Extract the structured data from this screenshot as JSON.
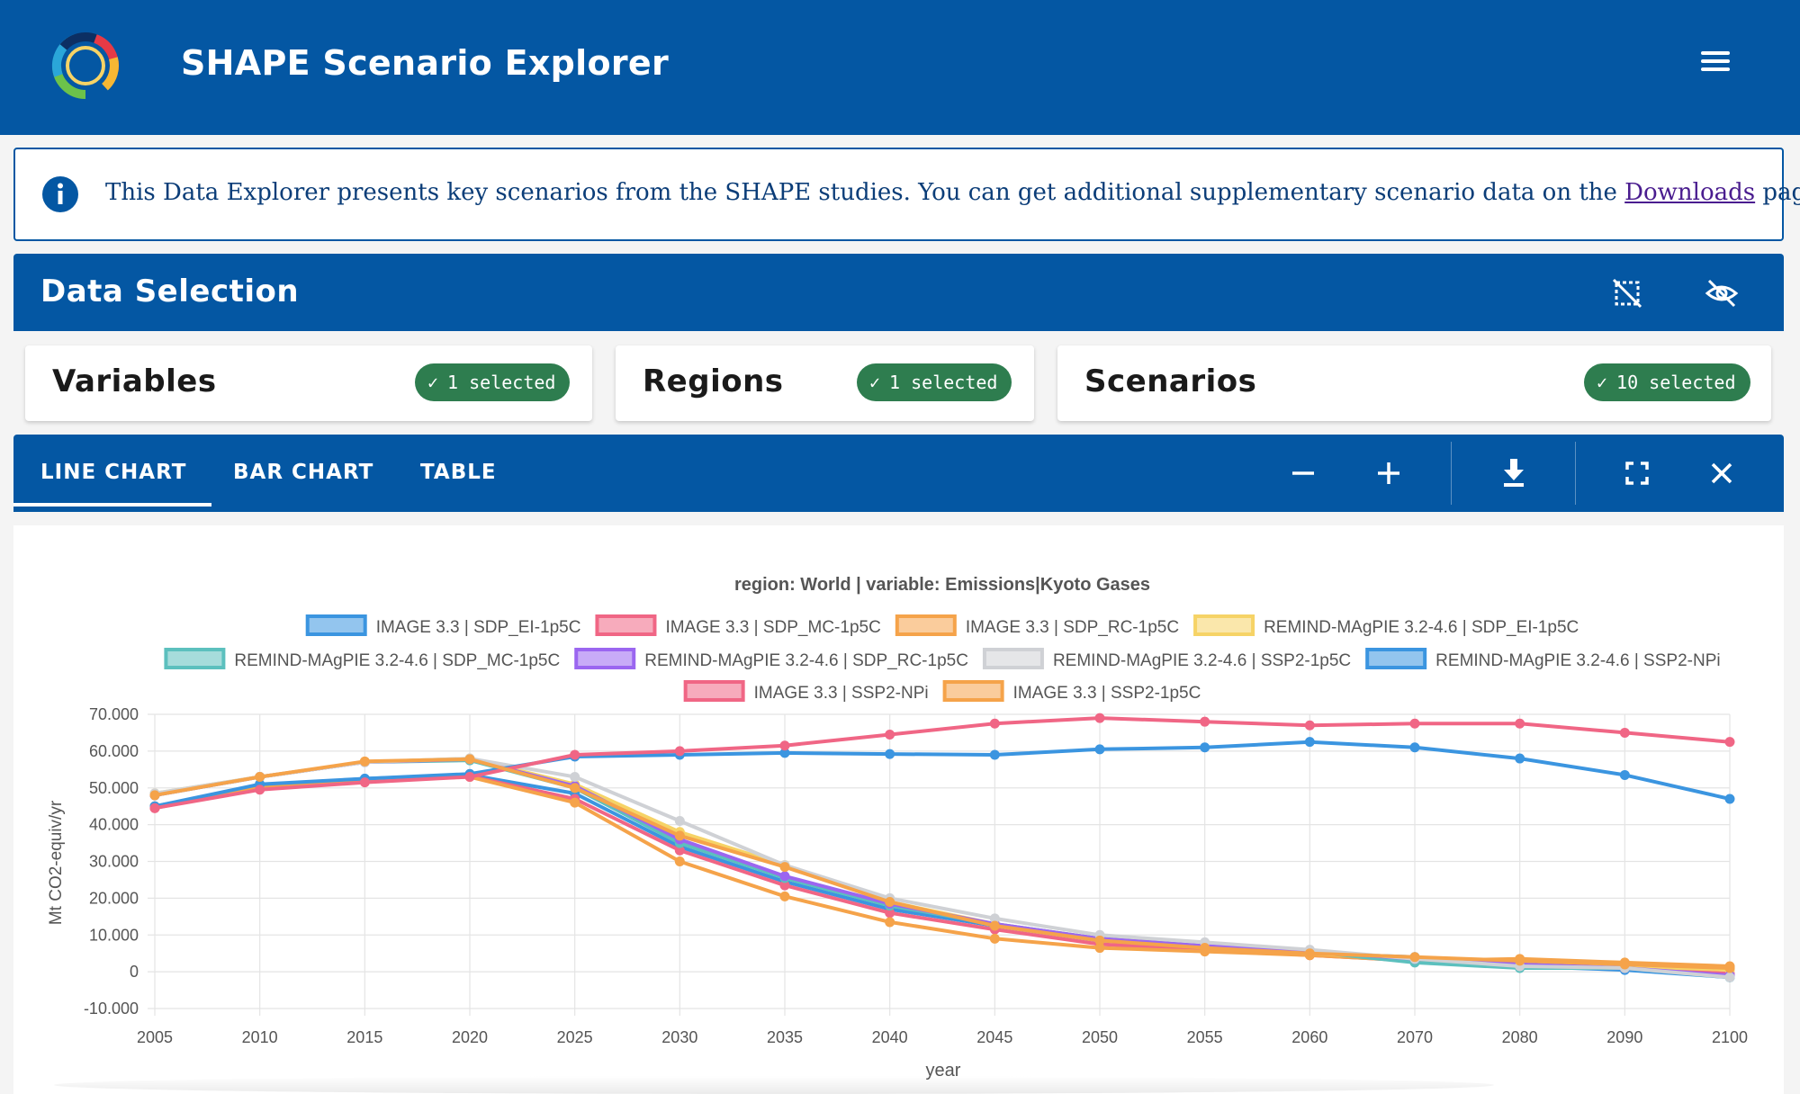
{
  "header": {
    "title": "SHAPE Scenario Explorer",
    "menu_icon": "hamburger-menu-icon"
  },
  "info": {
    "text_before": "This Data Explorer presents key scenarios from the SHAPE studies. You can get additional supplementary scenario data on the ",
    "link": "Downloads",
    "text_after": " page."
  },
  "data_selection": {
    "title": "Data Selection",
    "actions": [
      "deselect-all-icon",
      "hide-selection-icon"
    ]
  },
  "cards": {
    "variables": {
      "title": "Variables",
      "badge": "1 selected"
    },
    "regions": {
      "title": "Regions",
      "badge": "1 selected"
    },
    "scenarios": {
      "title": "Scenarios",
      "badge": "10 selected"
    }
  },
  "toolbar": {
    "tabs": [
      "LINE CHART",
      "BAR CHART",
      "TABLE"
    ],
    "active_tab": "LINE CHART",
    "tools": [
      "zoom-out-icon",
      "zoom-in-icon",
      "download-icon",
      "fullscreen-icon",
      "close-icon"
    ]
  },
  "colors": {
    "brand": "#0457a3",
    "badge": "#2e7d4f"
  },
  "chart_data": {
    "type": "line",
    "title": "region: World | variable: Emissions|Kyoto Gases",
    "xlabel": "year",
    "ylabel": "Mt CO2-equiv/yr",
    "x": [
      2005,
      2010,
      2015,
      2020,
      2025,
      2030,
      2035,
      2040,
      2045,
      2050,
      2055,
      2060,
      2070,
      2080,
      2090,
      2100
    ],
    "x_tick_labels": [
      "2005",
      "2010",
      "2015",
      "2020",
      "2025",
      "2030",
      "2035",
      "2040",
      "2045",
      "2050",
      "2055",
      "2060",
      "2070",
      "2080",
      "2090",
      "2100"
    ],
    "ylim": [
      -10000,
      70000
    ],
    "y_ticks": [
      -10000,
      0,
      10000,
      20000,
      30000,
      40000,
      50000,
      60000,
      70000
    ],
    "y_tick_labels": [
      "-10.000",
      "0",
      "10.000",
      "20.000",
      "30.000",
      "40.000",
      "50.000",
      "60.000",
      "70.000"
    ],
    "grid": true,
    "legend_position": "top",
    "series": [
      {
        "name": "IMAGE 3.3 | SDP_EI-1p5C",
        "color": "#3b95e0",
        "values": [
          45000,
          50500,
          52500,
          53500,
          48500,
          34000,
          24500,
          17000,
          12500,
          8500,
          7000,
          5000,
          4000,
          1500,
          500,
          -1500
        ]
      },
      {
        "name": "IMAGE 3.3 | SDP_MC-1p5C",
        "color": "#f06685",
        "values": [
          44500,
          50000,
          51800,
          53200,
          47000,
          33000,
          23500,
          16000,
          11500,
          7500,
          6000,
          4500,
          3000,
          2000,
          1000,
          -500
        ]
      },
      {
        "name": "IMAGE 3.3 | SDP_RC-1p5C",
        "color": "#f5a34a",
        "values": [
          45000,
          50000,
          52000,
          53000,
          46000,
          30000,
          20500,
          13500,
          9000,
          6500,
          5500,
          4500,
          3000,
          3500,
          2500,
          1500
        ]
      },
      {
        "name": "REMIND-MAgPIE 3.2-4.6 | SDP_EI-1p5C",
        "color": "#f6d366",
        "values": [
          48500,
          53000,
          57000,
          58000,
          51000,
          38000,
          29000,
          19000,
          13000,
          9000,
          7000,
          5000,
          3500,
          2500,
          1500,
          500
        ]
      },
      {
        "name": "REMIND-MAgPIE 3.2-4.6 | SDP_MC-1p5C",
        "color": "#5cc0be",
        "values": [
          48000,
          53000,
          57000,
          57500,
          50000,
          35000,
          25500,
          18000,
          13000,
          9000,
          7000,
          5500,
          2500,
          1000,
          1000,
          -1500
        ]
      },
      {
        "name": "REMIND-MAgPIE 3.2-4.6 | SDP_RC-1p5C",
        "color": "#9b66f0",
        "values": [
          48000,
          53000,
          57000,
          57800,
          50500,
          36000,
          26000,
          18500,
          13000,
          9000,
          7000,
          5500,
          3500,
          2000,
          1000,
          -1000
        ]
      },
      {
        "name": "REMIND-MAgPIE 3.2-4.6 | SSP2-1p5C",
        "color": "#cfd1d5",
        "values": [
          48500,
          53000,
          57000,
          58000,
          53000,
          41000,
          29000,
          20000,
          14500,
          10000,
          8000,
          6000,
          3500,
          1500,
          1000,
          -1500
        ]
      },
      {
        "name": "REMIND-MAgPIE 3.2-4.6 | SSP2-NPi",
        "color": "#3b95e0",
        "values": [
          45000,
          51000,
          52500,
          53800,
          58500,
          59000,
          59500,
          59200,
          59000,
          60500,
          61000,
          62500,
          61000,
          58000,
          53500,
          47000
        ]
      },
      {
        "name": "IMAGE 3.3 | SSP2-NPi",
        "color": "#f06685",
        "values": [
          44500,
          49500,
          51500,
          53000,
          59000,
          60000,
          61500,
          64500,
          67500,
          69000,
          68000,
          67000,
          67500,
          67500,
          65000,
          62500
        ]
      },
      {
        "name": "IMAGE 3.3 | SSP2-1p5C",
        "color": "#f5a34a",
        "values": [
          48000,
          53000,
          57200,
          57800,
          50000,
          37000,
          28500,
          19000,
          12500,
          8500,
          6500,
          5000,
          4000,
          3000,
          2000,
          1000
        ]
      }
    ]
  }
}
